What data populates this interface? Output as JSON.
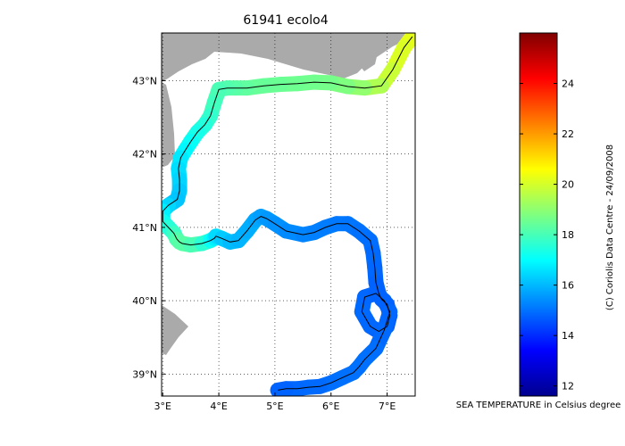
{
  "title": "61941 ecolo4",
  "axes": {
    "lon_range": [
      2.98,
      7.5
    ],
    "lat_range": [
      38.7,
      43.65
    ],
    "lon_ticks": [
      {
        "v": 3,
        "label": "3°E"
      },
      {
        "v": 4,
        "label": "4°E"
      },
      {
        "v": 5,
        "label": "5°E"
      },
      {
        "v": 6,
        "label": "6°E"
      },
      {
        "v": 7,
        "label": "7°E"
      }
    ],
    "lat_ticks": [
      {
        "v": 39,
        "label": "39°N"
      },
      {
        "v": 40,
        "label": "40°N"
      },
      {
        "v": 41,
        "label": "41°N"
      },
      {
        "v": 42,
        "label": "42°N"
      },
      {
        "v": 43,
        "label": "43°N"
      }
    ],
    "grid": true,
    "land_color": "#aaaaaa"
  },
  "colorbar": {
    "range": [
      11.6,
      26.0
    ],
    "ticks": [
      {
        "v": 12,
        "label": "12"
      },
      {
        "v": 14,
        "label": "14"
      },
      {
        "v": 16,
        "label": "16"
      },
      {
        "v": 18,
        "label": "18"
      },
      {
        "v": 20,
        "label": "20"
      },
      {
        "v": 22,
        "label": "22"
      },
      {
        "v": 24,
        "label": "24"
      }
    ],
    "colormap": "jet",
    "label": "SEA TEMPERATURE in Celsius degree"
  },
  "credit": "(C) Coriolis Data Centre - 24/09/2008",
  "chart_data": {
    "type": "scatter",
    "title": "61941 ecolo4",
    "xlabel": "",
    "ylabel": "",
    "xlim": [
      2.98,
      7.5
    ],
    "ylim": [
      38.7,
      43.65
    ],
    "track": {
      "lon": [
        7.45,
        7.3,
        7.1,
        6.9,
        6.6,
        6.3,
        6.0,
        5.7,
        5.4,
        5.1,
        4.8,
        4.5,
        4.3,
        4.15,
        4.0,
        3.92,
        3.85,
        3.75,
        3.62,
        3.5,
        3.4,
        3.32,
        3.28,
        3.3,
        3.3,
        3.26,
        3.2,
        3.1,
        3.0,
        3.0,
        3.1,
        3.2,
        3.25,
        3.3,
        3.35,
        3.5,
        3.7,
        3.85,
        3.92,
        3.95,
        4.05,
        4.2,
        4.35,
        4.5,
        4.65,
        4.75,
        4.85,
        5.0,
        5.2,
        5.5,
        5.7,
        5.9,
        6.1,
        6.3,
        6.5,
        6.7,
        6.75,
        6.78,
        6.8,
        6.85,
        6.9,
        7.0,
        7.05,
        7.0,
        6.85,
        6.7,
        6.55,
        6.6,
        6.8,
        6.95,
        7.05,
        6.95,
        6.8,
        6.6,
        6.5,
        6.4,
        6.2,
        6.0,
        5.8,
        5.6,
        5.4,
        5.2,
        5.05
      ],
      "lat": [
        43.6,
        43.45,
        43.15,
        42.93,
        42.9,
        42.92,
        42.97,
        42.98,
        42.96,
        42.95,
        42.93,
        42.9,
        42.9,
        42.9,
        42.88,
        42.7,
        42.52,
        42.4,
        42.3,
        42.17,
        42.05,
        41.95,
        41.8,
        41.65,
        41.5,
        41.38,
        41.35,
        41.3,
        41.22,
        41.08,
        41.0,
        40.92,
        40.84,
        40.8,
        40.78,
        40.76,
        40.78,
        40.82,
        40.85,
        40.88,
        40.85,
        40.8,
        40.82,
        40.95,
        41.1,
        41.15,
        41.12,
        41.05,
        40.95,
        40.9,
        40.93,
        41.0,
        41.05,
        41.05,
        40.95,
        40.82,
        40.65,
        40.45,
        40.25,
        40.1,
        40.02,
        39.95,
        39.8,
        39.65,
        39.58,
        39.65,
        39.85,
        40.05,
        40.1,
        40.0,
        39.85,
        39.6,
        39.35,
        39.2,
        39.1,
        39.02,
        38.95,
        38.88,
        38.83,
        38.82,
        38.8,
        38.8,
        38.78
      ],
      "temperature": [
        20.3,
        20.2,
        20.0,
        19.7,
        19.2,
        18.9,
        18.7,
        18.6,
        18.6,
        18.5,
        18.5,
        18.4,
        18.3,
        18.2,
        18.1,
        18.0,
        17.8,
        17.6,
        17.4,
        17.2,
        17.0,
        16.8,
        16.6,
        16.5,
        16.3,
        16.2,
        16.1,
        16.3,
        16.6,
        17.0,
        17.4,
        17.7,
        18.0,
        18.2,
        18.3,
        18.2,
        17.9,
        17.3,
        17.0,
        16.6,
        16.4,
        16.1,
        16.0,
        15.9,
        15.8,
        15.7,
        15.6,
        15.5,
        15.4,
        15.3,
        15.2,
        15.2,
        15.1,
        15.1,
        15.0,
        15.0,
        14.9,
        14.9,
        14.8,
        14.8,
        14.8,
        14.7,
        14.7,
        14.7,
        14.8,
        14.8,
        14.9,
        14.9,
        14.8,
        14.8,
        14.8,
        14.9,
        14.9,
        15.0,
        15.0,
        15.0,
        15.0,
        15.0,
        14.9,
        14.9,
        14.9,
        14.8,
        14.8
      ]
    }
  }
}
